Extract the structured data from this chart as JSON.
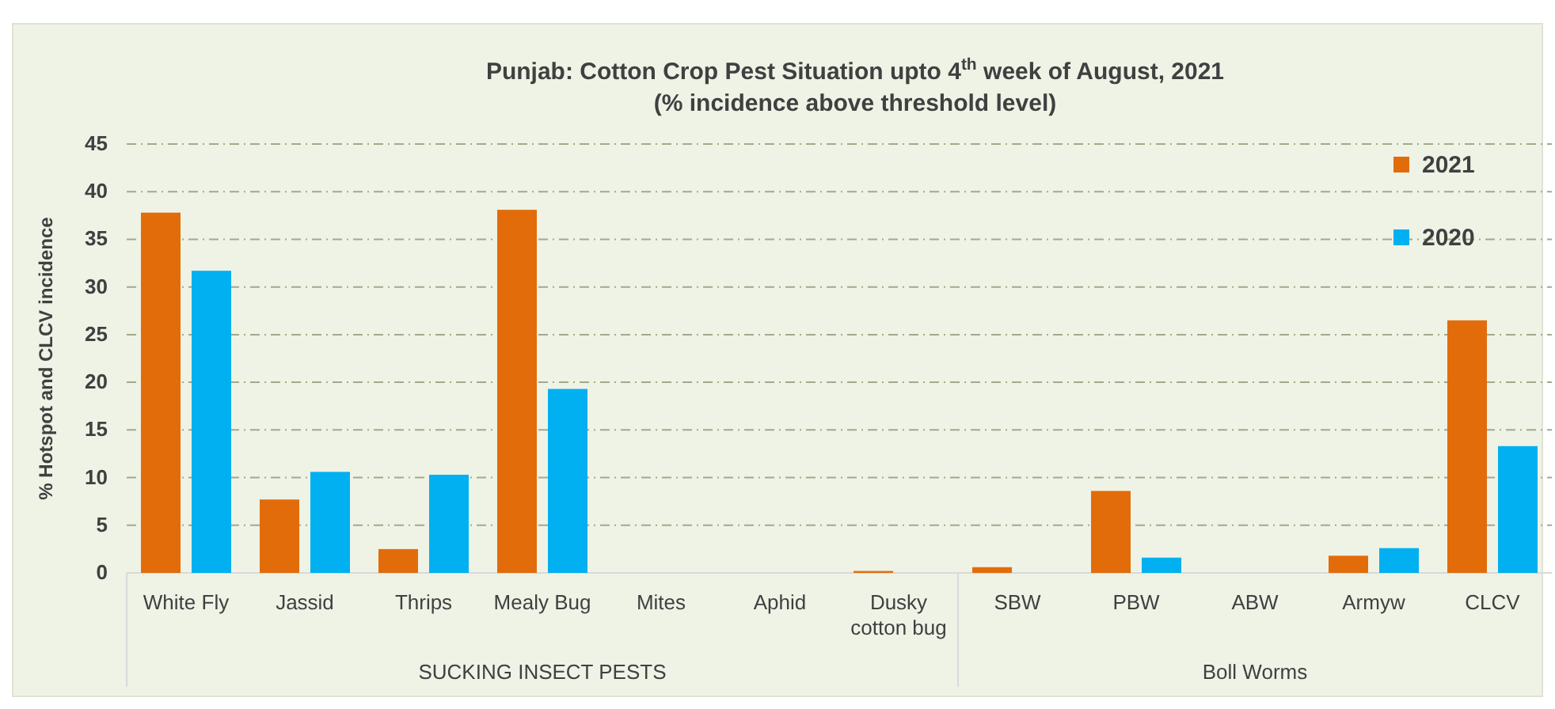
{
  "chart_data": {
    "type": "bar",
    "title": "Punjab: Cotton Crop Pest Situation upto 4$^{th}$ week of August, 2021",
    "subtitle": "(% incidence above threshold level)",
    "ylabel": "% Hotspot and CLCV incidence",
    "categories": [
      "White Fly",
      "Jassid",
      "Thrips",
      "Mealy Bug",
      "Mites",
      "Aphid",
      "Dusky cotton bug",
      "SBW",
      "PBW",
      "ABW",
      "Armyw",
      "CLCV"
    ],
    "series": [
      {
        "name": "2021",
        "color": "#e36c0a",
        "values": [
          37.8,
          7.7,
          2.5,
          38.1,
          0,
          0,
          0.2,
          0.6,
          8.6,
          0,
          1.8,
          26.5
        ]
      },
      {
        "name": "2020",
        "color": "#00b0f0",
        "values": [
          31.7,
          10.6,
          10.3,
          19.3,
          0,
          0,
          0,
          0,
          1.6,
          0,
          2.6,
          13.3
        ]
      }
    ],
    "ylim": [
      0,
      45
    ],
    "yticks": [
      0,
      5,
      10,
      15,
      20,
      25,
      30,
      35,
      40,
      45
    ],
    "grid": "y",
    "legend": "top right",
    "annotations": [
      "SUCKING INSECT PESTS",
      "Boll Worms"
    ]
  }
}
